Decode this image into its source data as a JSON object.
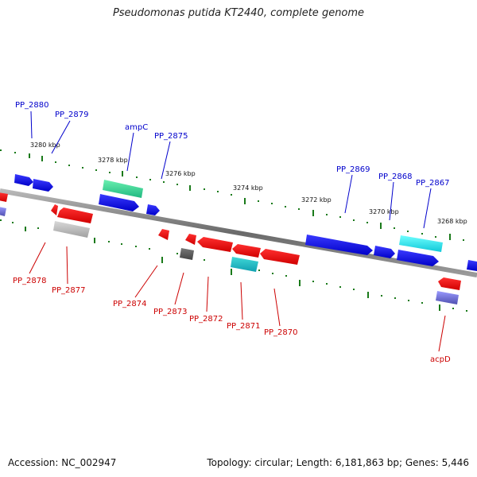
{
  "title": "Pseudomonas putida KT2440, complete genome",
  "footer": {
    "accession": "Accession: NC_002947",
    "info": "Topology: circular; Length: 6,181,863 bp; Genes: 5,446"
  },
  "colors": {
    "forward_label": "#0000cc",
    "reverse_label": "#cc0000",
    "tick": "#1a7a1a",
    "backbone": "#808080"
  },
  "ruler_labels": [
    "3280 kbp",
    "3278 kbp",
    "3276 kbp",
    "3274 kbp",
    "3272 kbp",
    "3270 kbp",
    "3268 kbp"
  ],
  "forward_gene_labels": [
    "PP_2880",
    "PP_2879",
    "ampC",
    "PP_2875",
    "PP_2869",
    "PP_2868",
    "PP_2867"
  ],
  "reverse_gene_labels": [
    "PP_2878",
    "PP_2877",
    "PP_2874",
    "PP_2873",
    "PP_2872",
    "PP_2871",
    "PP_2870",
    "acpD"
  ]
}
